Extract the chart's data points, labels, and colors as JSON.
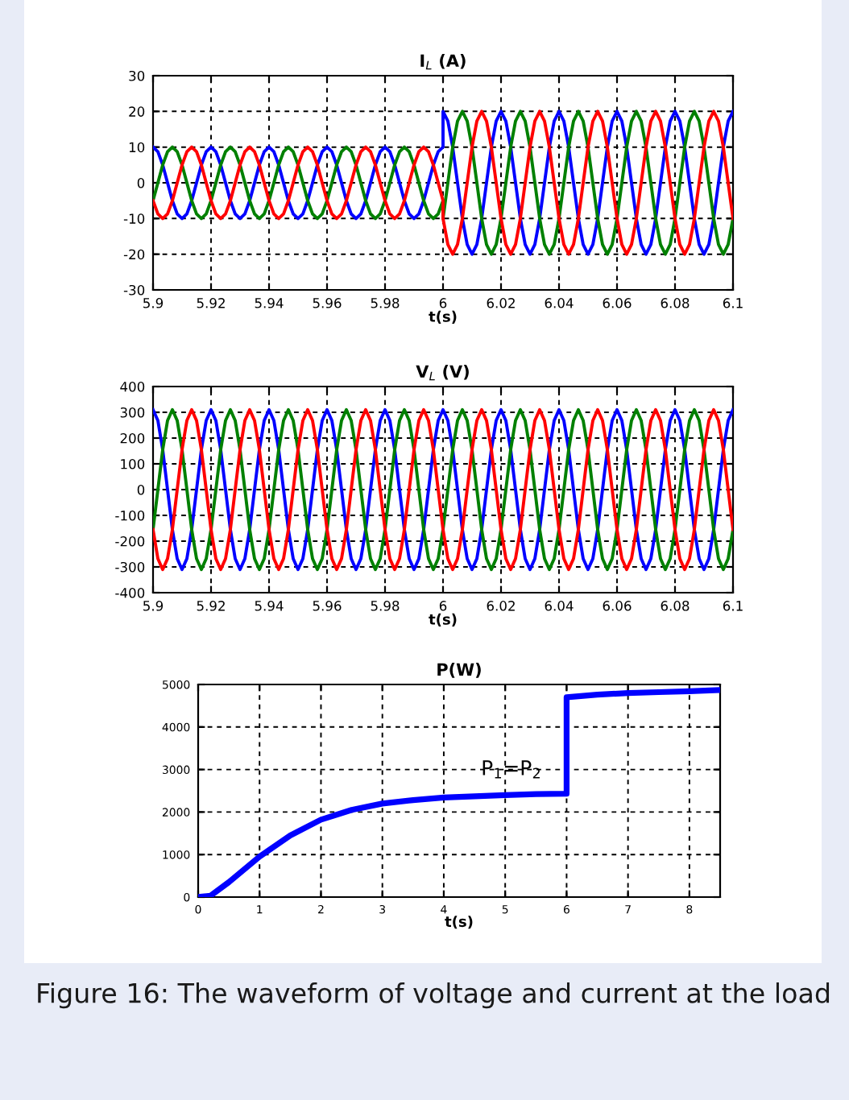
{
  "chart_data": [
    {
      "type": "line",
      "title": "I$_{L}$ (A)",
      "xlabel": "t(s)",
      "xlim": [
        5.9,
        6.1
      ],
      "xticks": [
        5.9,
        5.92,
        5.94,
        5.96,
        5.98,
        6,
        6.02,
        6.04,
        6.06,
        6.08,
        6.1
      ],
      "ylim": [
        -30,
        30
      ],
      "yticks": [
        -30,
        -20,
        -10,
        0,
        10,
        20,
        30
      ],
      "grid": true,
      "line_style": "solid",
      "x": [
        5.9,
        5.90167,
        5.90333,
        5.905,
        5.90667,
        5.90833,
        5.91,
        5.91167,
        5.91333,
        5.915,
        5.91667,
        5.91833,
        5.92,
        5.92167,
        5.92333,
        5.925,
        5.92667,
        5.92833,
        5.93,
        5.93167,
        5.93333,
        5.935,
        5.93667,
        5.93833,
        5.94,
        5.94167,
        5.94333,
        5.945,
        5.94667,
        5.94833,
        5.95,
        5.95167,
        5.95333,
        5.955,
        5.95667,
        5.95833,
        5.96,
        5.96167,
        5.96333,
        5.965,
        5.96667,
        5.96833,
        5.97,
        5.97167,
        5.97333,
        5.975,
        5.97667,
        5.97833,
        5.98,
        5.98167,
        5.98333,
        5.985,
        5.98667,
        5.98833,
        5.99,
        5.99167,
        5.99333,
        5.995,
        5.99667,
        5.99833,
        6,
        6,
        6.00167,
        6.00333,
        6.005,
        6.00667,
        6.00833,
        6.01,
        6.01167,
        6.01333,
        6.015,
        6.01667,
        6.01833,
        6.02,
        6.02167,
        6.02333,
        6.025,
        6.02667,
        6.02833,
        6.03,
        6.03167,
        6.03333,
        6.035,
        6.03667,
        6.03833,
        6.04,
        6.04167,
        6.04333,
        6.045,
        6.04667,
        6.04833,
        6.05,
        6.05167,
        6.05333,
        6.055,
        6.05667,
        6.05833,
        6.06,
        6.06167,
        6.06333,
        6.065,
        6.06667,
        6.06833,
        6.07,
        6.07167,
        6.07333,
        6.075,
        6.07667,
        6.07833,
        6.08,
        6.08167,
        6.08333,
        6.085,
        6.08667,
        6.08833,
        6.09,
        6.09167,
        6.09333,
        6.095,
        6.09667,
        6.09833,
        6.1
      ],
      "series": [
        {
          "color": "#0000ff",
          "values": [
            10,
            8.7,
            5,
            0,
            -5,
            -8.7,
            -10,
            -8.7,
            -5,
            0,
            5,
            8.7,
            10,
            8.7,
            5,
            0,
            -5,
            -8.7,
            -10,
            -8.7,
            -5,
            0,
            5,
            8.7,
            10,
            8.7,
            5,
            0,
            -5,
            -8.7,
            -10,
            -8.7,
            -5,
            0,
            5,
            8.7,
            10,
            8.7,
            5,
            0,
            -5,
            -8.7,
            -10,
            -8.7,
            -5,
            0,
            5,
            8.7,
            10,
            8.7,
            5,
            0,
            -5,
            -8.7,
            -10,
            -8.7,
            -5,
            0,
            5,
            8.7,
            10,
            20,
            17.3,
            10,
            0,
            -10,
            -17.3,
            -20,
            -17.3,
            -10,
            0,
            10,
            17.3,
            20,
            17.3,
            10,
            0,
            -10,
            -17.3,
            -20,
            -17.3,
            -10,
            0,
            10,
            17.3,
            20,
            17.3,
            10,
            0,
            -10,
            -17.3,
            -20,
            -17.3,
            -10,
            0,
            10,
            17.3,
            20,
            17.3,
            10,
            0,
            -10,
            -17.3,
            -20,
            -17.3,
            -10,
            0,
            10,
            17.3,
            20,
            17.3,
            10,
            0,
            -10,
            -17.3,
            -20,
            -17.3,
            -10,
            0,
            10,
            17.3,
            20
          ]
        },
        {
          "color": "#008000",
          "values": [
            -5,
            0,
            5,
            8.7,
            10,
            8.7,
            5,
            0,
            -5,
            -8.7,
            -10,
            -8.7,
            -5,
            0,
            5,
            8.7,
            10,
            8.7,
            5,
            0,
            -5,
            -8.7,
            -10,
            -8.7,
            -5,
            0,
            5,
            8.7,
            10,
            8.7,
            5,
            0,
            -5,
            -8.7,
            -10,
            -8.7,
            -5,
            0,
            5,
            8.7,
            10,
            8.7,
            5,
            0,
            -5,
            -8.7,
            -10,
            -8.7,
            -5,
            0,
            5,
            8.7,
            10,
            8.7,
            5,
            0,
            -5,
            -8.7,
            -10,
            -8.7,
            -5,
            -10,
            0,
            10,
            17.3,
            20,
            17.3,
            10,
            0,
            -10,
            -17.3,
            -20,
            -17.3,
            -10,
            0,
            10,
            17.3,
            20,
            17.3,
            10,
            0,
            -10,
            -17.3,
            -20,
            -17.3,
            -10,
            0,
            10,
            17.3,
            20,
            17.3,
            10,
            0,
            -10,
            -17.3,
            -20,
            -17.3,
            -10,
            0,
            10,
            17.3,
            20,
            17.3,
            10,
            0,
            -10,
            -17.3,
            -20,
            -17.3,
            -10,
            0,
            10,
            17.3,
            20,
            17.3,
            10,
            0,
            -10,
            -17.3,
            -20,
            -17.3,
            -10
          ]
        },
        {
          "color": "#ff0000",
          "values": [
            -5,
            -8.7,
            -10,
            -8.7,
            -5,
            0,
            5,
            8.7,
            10,
            8.7,
            5,
            0,
            -5,
            -8.7,
            -10,
            -8.7,
            -5,
            0,
            5,
            8.7,
            10,
            8.7,
            5,
            0,
            -5,
            -8.7,
            -10,
            -8.7,
            -5,
            0,
            5,
            8.7,
            10,
            8.7,
            5,
            0,
            -5,
            -8.7,
            -10,
            -8.7,
            -5,
            0,
            5,
            8.7,
            10,
            8.7,
            5,
            0,
            -5,
            -8.7,
            -10,
            -8.7,
            -5,
            0,
            5,
            8.7,
            10,
            8.7,
            5,
            0,
            -5,
            -10,
            -17.3,
            -20,
            -17.3,
            -10,
            0,
            10,
            17.3,
            20,
            17.3,
            10,
            0,
            -10,
            -17.3,
            -20,
            -17.3,
            -10,
            0,
            10,
            17.3,
            20,
            17.3,
            10,
            0,
            -10,
            -17.3,
            -20,
            -17.3,
            -10,
            0,
            10,
            17.3,
            20,
            17.3,
            10,
            0,
            -10,
            -17.3,
            -20,
            -17.3,
            -10,
            0,
            10,
            17.3,
            20,
            17.3,
            10,
            0,
            -10,
            -17.3,
            -20,
            -17.3,
            -10,
            0,
            10,
            17.3,
            20,
            17.3,
            10,
            0,
            -10
          ]
        }
      ]
    },
    {
      "type": "line",
      "title": "V$_{L}$ (V)",
      "xlabel": "t(s)",
      "xlim": [
        5.9,
        6.1
      ],
      "xticks": [
        5.9,
        5.92,
        5.94,
        5.96,
        5.98,
        6,
        6.02,
        6.04,
        6.06,
        6.08,
        6.1
      ],
      "ylim": [
        -400,
        400
      ],
      "yticks": [
        -400,
        -300,
        -200,
        -100,
        0,
        100,
        200,
        300,
        400
      ],
      "grid": true,
      "line_style": "solid",
      "x": [
        5.9,
        5.90167,
        5.90333,
        5.905,
        5.90667,
        5.90833,
        5.91,
        5.91167,
        5.91333,
        5.915,
        5.91667,
        5.91833,
        5.92,
        5.92167,
        5.92333,
        5.925,
        5.92667,
        5.92833,
        5.93,
        5.93167,
        5.93333,
        5.935,
        5.93667,
        5.93833,
        5.94,
        5.94167,
        5.94333,
        5.945,
        5.94667,
        5.94833,
        5.95,
        5.95167,
        5.95333,
        5.955,
        5.95667,
        5.95833,
        5.96,
        5.96167,
        5.96333,
        5.965,
        5.96667,
        5.96833,
        5.97,
        5.97167,
        5.97333,
        5.975,
        5.97667,
        5.97833,
        5.98,
        5.98167,
        5.98333,
        5.985,
        5.98667,
        5.98833,
        5.99,
        5.99167,
        5.99333,
        5.995,
        5.99667,
        5.99833,
        6,
        6.00167,
        6.00333,
        6.005,
        6.00667,
        6.00833,
        6.01,
        6.01167,
        6.01333,
        6.015,
        6.01667,
        6.01833,
        6.02,
        6.02167,
        6.02333,
        6.025,
        6.02667,
        6.02833,
        6.03,
        6.03167,
        6.03333,
        6.035,
        6.03667,
        6.03833,
        6.04,
        6.04167,
        6.04333,
        6.045,
        6.04667,
        6.04833,
        6.05,
        6.05167,
        6.05333,
        6.055,
        6.05667,
        6.05833,
        6.06,
        6.06167,
        6.06333,
        6.065,
        6.06667,
        6.06833,
        6.07,
        6.07167,
        6.07333,
        6.075,
        6.07667,
        6.07833,
        6.08,
        6.08167,
        6.08333,
        6.085,
        6.08667,
        6.08833,
        6.09,
        6.09167,
        6.09333,
        6.095,
        6.09667,
        6.09833,
        6.1
      ],
      "series": [
        {
          "color": "#0000ff",
          "values": [
            310,
            268,
            155,
            0,
            -155,
            -268,
            -310,
            -268,
            -155,
            0,
            155,
            268,
            310,
            268,
            155,
            0,
            -155,
            -268,
            -310,
            -268,
            -155,
            0,
            155,
            268,
            310,
            268,
            155,
            0,
            -155,
            -268,
            -310,
            -268,
            -155,
            0,
            155,
            268,
            310,
            268,
            155,
            0,
            -155,
            -268,
            -310,
            -268,
            -155,
            0,
            155,
            268,
            310,
            268,
            155,
            0,
            -155,
            -268,
            -310,
            -268,
            -155,
            0,
            155,
            268,
            310,
            268,
            155,
            0,
            -155,
            -268,
            -310,
            -268,
            -155,
            0,
            155,
            268,
            310,
            268,
            155,
            0,
            -155,
            -268,
            -310,
            -268,
            -155,
            0,
            155,
            268,
            310,
            268,
            155,
            0,
            -155,
            -268,
            -310,
            -268,
            -155,
            0,
            155,
            268,
            310,
            268,
            155,
            0,
            -155,
            -268,
            -310,
            -268,
            -155,
            0,
            155,
            268,
            310,
            268,
            155,
            0,
            -155,
            -268,
            -310,
            -268,
            -155,
            0,
            155,
            268,
            310
          ]
        },
        {
          "color": "#008000",
          "values": [
            -155,
            0,
            155,
            268,
            310,
            268,
            155,
            0,
            -155,
            -268,
            -310,
            -268,
            -155,
            0,
            155,
            268,
            310,
            268,
            155,
            0,
            -155,
            -268,
            -310,
            -268,
            -155,
            0,
            155,
            268,
            310,
            268,
            155,
            0,
            -155,
            -268,
            -310,
            -268,
            -155,
            0,
            155,
            268,
            310,
            268,
            155,
            0,
            -155,
            -268,
            -310,
            -268,
            -155,
            0,
            155,
            268,
            310,
            268,
            155,
            0,
            -155,
            -268,
            -310,
            -268,
            -155,
            0,
            155,
            268,
            310,
            268,
            155,
            0,
            -155,
            -268,
            -310,
            -268,
            -155,
            0,
            155,
            268,
            310,
            268,
            155,
            0,
            -155,
            -268,
            -310,
            -268,
            -155,
            0,
            155,
            268,
            310,
            268,
            155,
            0,
            -155,
            -268,
            -310,
            -268,
            -155,
            0,
            155,
            268,
            310,
            268,
            155,
            0,
            -155,
            -268,
            -310,
            -268,
            -155,
            0,
            155,
            268,
            310,
            268,
            155,
            0,
            -155,
            -268,
            -310,
            -268,
            -155
          ]
        },
        {
          "color": "#ff0000",
          "values": [
            -155,
            -268,
            -310,
            -268,
            -155,
            0,
            155,
            268,
            310,
            268,
            155,
            0,
            -155,
            -268,
            -310,
            -268,
            -155,
            0,
            155,
            268,
            310,
            268,
            155,
            0,
            -155,
            -268,
            -310,
            -268,
            -155,
            0,
            155,
            268,
            310,
            268,
            155,
            0,
            -155,
            -268,
            -310,
            -268,
            -155,
            0,
            155,
            268,
            310,
            268,
            155,
            0,
            -155,
            -268,
            -310,
            -268,
            -155,
            0,
            155,
            268,
            310,
            268,
            155,
            0,
            -155,
            -268,
            -310,
            -268,
            -155,
            0,
            155,
            268,
            310,
            268,
            155,
            0,
            -155,
            -268,
            -310,
            -268,
            -155,
            0,
            155,
            268,
            310,
            268,
            155,
            0,
            -155,
            -268,
            -310,
            -268,
            -155,
            0,
            155,
            268,
            310,
            268,
            155,
            0,
            -155,
            -268,
            -310,
            -268,
            -155,
            0,
            155,
            268,
            310,
            268,
            155,
            0,
            -155,
            -268,
            -310,
            -268,
            -155,
            0,
            155,
            268,
            310,
            268,
            155,
            0,
            -155
          ]
        }
      ]
    },
    {
      "type": "line",
      "title": "P(W)",
      "xlabel": "t(s)",
      "xlim": [
        0,
        8.5
      ],
      "xticks": [
        0,
        1,
        2,
        3,
        4,
        5,
        6,
        7,
        8
      ],
      "ylim": [
        0,
        5000
      ],
      "yticks": [
        0,
        1000,
        2000,
        3000,
        4000,
        5000
      ],
      "grid": true,
      "line_style": "solid",
      "x": [
        0,
        0.2,
        0.5,
        1,
        1.5,
        2,
        2.5,
        3,
        3.5,
        4,
        4.5,
        5,
        5.5,
        6,
        6,
        6.5,
        7,
        7.5,
        8,
        8.5
      ],
      "series": [
        {
          "color": "#0000ff",
          "values": [
            0,
            30,
            350,
            950,
            1450,
            1820,
            2050,
            2200,
            2280,
            2340,
            2370,
            2400,
            2420,
            2430,
            4700,
            4760,
            4800,
            4820,
            4840,
            4870
          ]
        }
      ],
      "annotations": [
        "P$_{1}$=P$_{2}$",
        "Figure 16: The waveform of voltage and current at the load"
      ]
    }
  ]
}
